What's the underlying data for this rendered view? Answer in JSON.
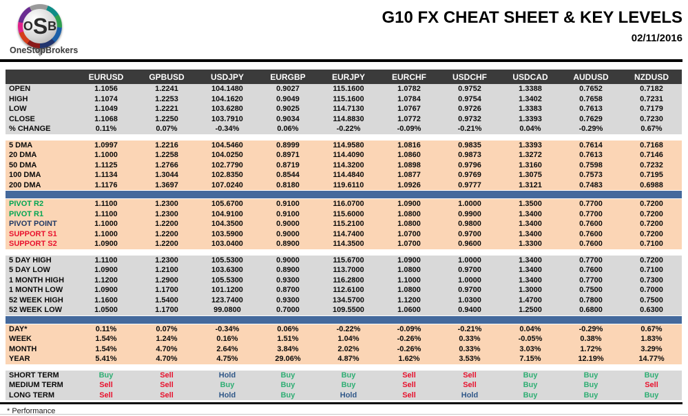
{
  "header": {
    "logo_monogram_o": "O",
    "logo_monogram_s": "S",
    "logo_monogram_b": "B",
    "brand": "OneStopBrokers",
    "title": "G10 FX CHEAT SHEET & KEY LEVELS",
    "date": "02/11/2016"
  },
  "colors": {
    "header_bg": "#3B3B3B",
    "gray_section": "#D9D9D9",
    "peach_section": "#FBD5B5",
    "divider_blue": "#44699C",
    "buy_green": "#2FAE74",
    "sell_red": "#E8112D",
    "hold_blue": "#2F5788",
    "pivot_green": "#00A551",
    "pivot_navy": "#1F3864",
    "support_red": "#E8112D"
  },
  "table": {
    "columns": [
      "EURUSD",
      "GPBUSD",
      "USDJPY",
      "EURGBP",
      "EURJPY",
      "EURCHF",
      "USDCHF",
      "USDCAD",
      "AUDUSD",
      "NZDUSD"
    ],
    "sections": [
      {
        "id": "ohlc",
        "palette": "gray",
        "divider": "gap",
        "rows": [
          {
            "label": "OPEN",
            "values": [
              "1.1056",
              "1.2241",
              "104.1480",
              "0.9027",
              "115.1600",
              "1.0782",
              "0.9752",
              "1.3388",
              "0.7652",
              "0.7182"
            ]
          },
          {
            "label": "HIGH",
            "values": [
              "1.1074",
              "1.2253",
              "104.1620",
              "0.9049",
              "115.1600",
              "1.0784",
              "0.9754",
              "1.3402",
              "0.7658",
              "0.7231"
            ]
          },
          {
            "label": "LOW",
            "values": [
              "1.1049",
              "1.2221",
              "103.6280",
              "0.9025",
              "114.7130",
              "1.0767",
              "0.9726",
              "1.3383",
              "0.7613",
              "0.7179"
            ]
          },
          {
            "label": "CLOSE",
            "values": [
              "1.1068",
              "1.2250",
              "103.7910",
              "0.9034",
              "114.8830",
              "1.0772",
              "0.9732",
              "1.3393",
              "0.7629",
              "0.7230"
            ]
          },
          {
            "label": "% CHANGE",
            "values": [
              "0.11%",
              "0.07%",
              "-0.34%",
              "0.06%",
              "-0.22%",
              "-0.09%",
              "-0.21%",
              "0.04%",
              "-0.29%",
              "0.67%"
            ]
          }
        ]
      },
      {
        "id": "moving-averages",
        "palette": "peach",
        "divider": "bar",
        "rows": [
          {
            "label": "5 DMA",
            "values": [
              "1.0997",
              "1.2216",
              "104.5460",
              "0.8999",
              "114.9580",
              "1.0816",
              "0.9835",
              "1.3393",
              "0.7614",
              "0.7168"
            ]
          },
          {
            "label": "20 DMA",
            "values": [
              "1.1000",
              "1.2258",
              "104.0250",
              "0.8971",
              "114.4090",
              "1.0860",
              "0.9873",
              "1.3272",
              "0.7613",
              "0.7146"
            ]
          },
          {
            "label": "50 DMA",
            "values": [
              "1.1125",
              "1.2766",
              "102.7790",
              "0.8719",
              "114.3200",
              "1.0898",
              "0.9796",
              "1.3160",
              "0.7598",
              "0.7232"
            ]
          },
          {
            "label": "100 DMA",
            "values": [
              "1.1134",
              "1.3044",
              "102.8350",
              "0.8544",
              "114.4840",
              "1.0877",
              "0.9769",
              "1.3075",
              "0.7573",
              "0.7195"
            ]
          },
          {
            "label": "200 DMA",
            "values": [
              "1.1176",
              "1.3697",
              "107.0240",
              "0.8180",
              "119.6110",
              "1.0926",
              "0.9777",
              "1.3121",
              "0.7483",
              "0.6988"
            ]
          }
        ]
      },
      {
        "id": "pivots",
        "palette": "peach",
        "divider": "gap",
        "rows": [
          {
            "label": "PIVOT R2",
            "label_color": "green",
            "values": [
              "1.1100",
              "1.2300",
              "105.6700",
              "0.9100",
              "116.0700",
              "1.0900",
              "1.0000",
              "1.3500",
              "0.7700",
              "0.7200"
            ]
          },
          {
            "label": "PIVOT R1",
            "label_color": "green",
            "values": [
              "1.1100",
              "1.2300",
              "104.9100",
              "0.9100",
              "115.6000",
              "1.0800",
              "0.9900",
              "1.3400",
              "0.7700",
              "0.7200"
            ]
          },
          {
            "label": "PIVOT POINT",
            "label_color": "navy",
            "values": [
              "1.1000",
              "1.2200",
              "104.3500",
              "0.9000",
              "115.2100",
              "1.0800",
              "0.9800",
              "1.3400",
              "0.7600",
              "0.7200"
            ]
          },
          {
            "label": "SUPPORT S1",
            "label_color": "red",
            "values": [
              "1.1000",
              "1.2200",
              "103.5900",
              "0.9000",
              "114.7400",
              "1.0700",
              "0.9700",
              "1.3400",
              "0.7600",
              "0.7200"
            ]
          },
          {
            "label": "SUPPORT S2",
            "label_color": "red",
            "values": [
              "1.0900",
              "1.2200",
              "103.0400",
              "0.8900",
              "114.3500",
              "1.0700",
              "0.9600",
              "1.3300",
              "0.7600",
              "0.7100"
            ]
          }
        ]
      },
      {
        "id": "ranges",
        "palette": "gray",
        "divider": "bar",
        "rows": [
          {
            "label": "5 DAY HIGH",
            "values": [
              "1.1100",
              "1.2300",
              "105.5300",
              "0.9000",
              "115.6700",
              "1.0900",
              "1.0000",
              "1.3400",
              "0.7700",
              "0.7200"
            ]
          },
          {
            "label": "5 DAY LOW",
            "values": [
              "1.0900",
              "1.2100",
              "103.6300",
              "0.8900",
              "113.7000",
              "1.0800",
              "0.9700",
              "1.3400",
              "0.7600",
              "0.7100"
            ]
          },
          {
            "label": "1 MONTH HIGH",
            "values": [
              "1.1200",
              "1.2900",
              "105.5300",
              "0.9300",
              "116.2800",
              "1.1000",
              "1.0000",
              "1.3400",
              "0.7700",
              "0.7300"
            ]
          },
          {
            "label": "1 MONTH LOW",
            "values": [
              "1.0900",
              "1.1700",
              "101.1200",
              "0.8700",
              "112.6100",
              "1.0800",
              "0.9700",
              "1.3000",
              "0.7500",
              "0.7000"
            ]
          },
          {
            "label": "52 WEEK HIGH",
            "values": [
              "1.1600",
              "1.5400",
              "123.7400",
              "0.9300",
              "134.5700",
              "1.1200",
              "1.0300",
              "1.4700",
              "0.7800",
              "0.7500"
            ]
          },
          {
            "label": "52 WEEK LOW",
            "values": [
              "1.0500",
              "1.1700",
              "99.0800",
              "0.7000",
              "109.5500",
              "1.0600",
              "0.9400",
              "1.2500",
              "0.6800",
              "0.6300"
            ]
          }
        ]
      },
      {
        "id": "performance",
        "palette": "peach",
        "divider": "gap",
        "rows": [
          {
            "label": "DAY*",
            "values": [
              "0.11%",
              "0.07%",
              "-0.34%",
              "0.06%",
              "-0.22%",
              "-0.09%",
              "-0.21%",
              "0.04%",
              "-0.29%",
              "0.67%"
            ]
          },
          {
            "label": "WEEK",
            "values": [
              "1.54%",
              "1.24%",
              "0.16%",
              "1.51%",
              "1.04%",
              "-0.26%",
              "0.33%",
              "-0.05%",
              "0.38%",
              "1.83%"
            ]
          },
          {
            "label": "MONTH",
            "values": [
              "1.54%",
              "4.70%",
              "2.64%",
              "3.84%",
              "2.02%",
              "-0.26%",
              "0.33%",
              "3.03%",
              "1.72%",
              "3.29%"
            ]
          },
          {
            "label": "YEAR",
            "values": [
              "5.41%",
              "4.70%",
              "4.75%",
              "29.06%",
              "4.87%",
              "1.62%",
              "3.53%",
              "7.15%",
              "12.19%",
              "14.77%"
            ]
          }
        ]
      },
      {
        "id": "signals",
        "palette": "gray",
        "divider": "none",
        "signals": true,
        "rows": [
          {
            "label": "SHORT TERM",
            "values": [
              "Buy",
              "Sell",
              "Hold",
              "Buy",
              "Buy",
              "Sell",
              "Sell",
              "Buy",
              "Buy",
              "Buy"
            ]
          },
          {
            "label": "MEDIUM TERM",
            "values": [
              "Sell",
              "Sell",
              "Buy",
              "Buy",
              "Buy",
              "Sell",
              "Sell",
              "Buy",
              "Buy",
              "Sell"
            ]
          },
          {
            "label": "LONG TERM",
            "values": [
              "Sell",
              "Sell",
              "Hold",
              "Buy",
              "Hold",
              "Sell",
              "Hold",
              "Buy",
              "Buy",
              "Buy"
            ]
          }
        ]
      }
    ]
  },
  "footnote": "* Performance"
}
